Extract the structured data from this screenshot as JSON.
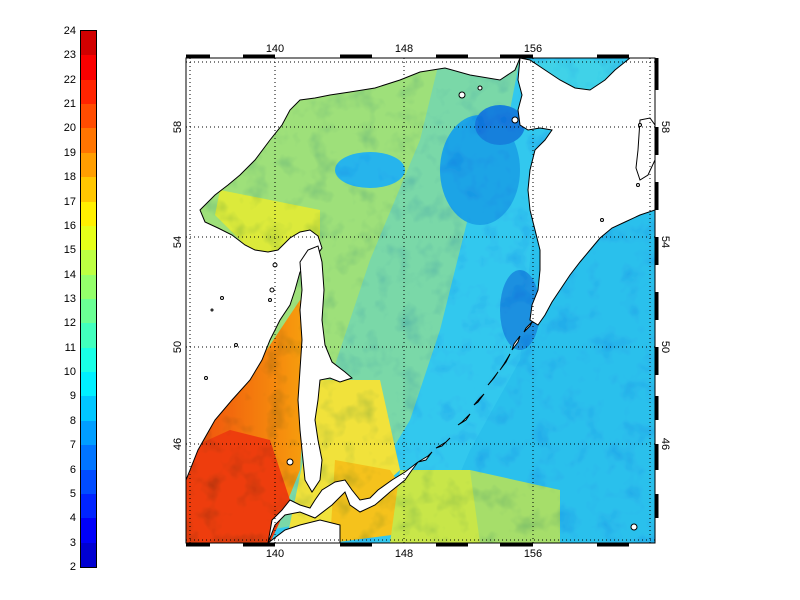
{
  "colorbar": {
    "min": 2,
    "max": 24,
    "step": 1,
    "labels": [
      "24",
      "23",
      "22",
      "21",
      "20",
      "19",
      "18",
      "17",
      "16",
      "15",
      "14",
      "13",
      "12",
      "11",
      "10",
      "9",
      "8",
      "7",
      "6",
      "5",
      "4",
      "3",
      "2"
    ]
  },
  "map": {
    "lon_ticks": [
      "140",
      "148",
      "156"
    ],
    "lat_ticks": [
      "58",
      "54",
      "50",
      "46"
    ],
    "lon_range": [
      135,
      164
    ],
    "lat_range": [
      43,
      59.5
    ]
  }
}
